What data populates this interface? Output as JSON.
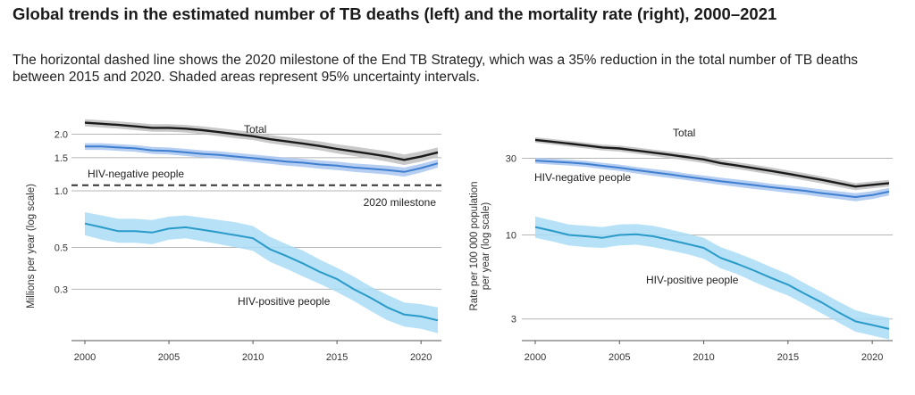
{
  "title": "Global trends in the estimated number of TB deaths (left) and the mortality rate (right), 2000–2021",
  "subtitle": "The horizontal dashed line shows the 2020 milestone of the End TB Strategy, which was a 35% reduction in the total number of TB deaths between 2015 and 2020. Shaded areas represent 95% uncertainty intervals.",
  "colors": {
    "total": "#1a1a1a",
    "total_band": "#bfbfbf",
    "hiv_negative": "#3f7fd0",
    "hiv_negative_band": "#a8c6ee",
    "hiv_positive": "#2a9ac9",
    "hiv_positive_band": "#a9dcf4",
    "grid": "#b5b5b5",
    "milestone": "#333333"
  },
  "chart_data": [
    {
      "type": "line",
      "scale": "log",
      "ylabel": "Millions per year (log scale)",
      "xlabel": "",
      "ylim": [
        0.16,
        2.5
      ],
      "x_ticks": [
        2000,
        2005,
        2010,
        2015,
        2020
      ],
      "y_ticks": [
        "2.0",
        "1.5",
        "1.0",
        "0.5",
        "0.3"
      ],
      "x": [
        2000,
        2001,
        2002,
        2003,
        2004,
        2005,
        2006,
        2007,
        2008,
        2009,
        2010,
        2011,
        2012,
        2013,
        2014,
        2015,
        2016,
        2017,
        2018,
        2019,
        2020,
        2021
      ],
      "series": [
        {
          "name": "Total",
          "key": "total",
          "values": [
            2.3,
            2.27,
            2.24,
            2.2,
            2.16,
            2.16,
            2.14,
            2.1,
            2.05,
            2.0,
            1.95,
            1.88,
            1.83,
            1.78,
            1.73,
            1.67,
            1.62,
            1.57,
            1.52,
            1.46,
            1.52,
            1.6
          ],
          "low": [
            2.2,
            2.17,
            2.14,
            2.1,
            2.06,
            2.06,
            2.04,
            2.0,
            1.95,
            1.9,
            1.86,
            1.79,
            1.74,
            1.69,
            1.64,
            1.58,
            1.53,
            1.48,
            1.43,
            1.37,
            1.43,
            1.51
          ],
          "high": [
            2.4,
            2.37,
            2.34,
            2.3,
            2.26,
            2.26,
            2.24,
            2.2,
            2.15,
            2.1,
            2.05,
            1.98,
            1.93,
            1.88,
            1.83,
            1.77,
            1.72,
            1.67,
            1.62,
            1.56,
            1.62,
            1.7
          ]
        },
        {
          "name": "HIV-negative people",
          "key": "hiv_negative",
          "values": [
            1.72,
            1.72,
            1.7,
            1.68,
            1.64,
            1.63,
            1.6,
            1.57,
            1.55,
            1.52,
            1.49,
            1.46,
            1.43,
            1.41,
            1.38,
            1.36,
            1.33,
            1.31,
            1.29,
            1.26,
            1.32,
            1.4
          ],
          "low": [
            1.65,
            1.65,
            1.63,
            1.61,
            1.57,
            1.56,
            1.53,
            1.5,
            1.48,
            1.45,
            1.42,
            1.39,
            1.36,
            1.34,
            1.31,
            1.29,
            1.26,
            1.24,
            1.22,
            1.19,
            1.25,
            1.33
          ],
          "high": [
            1.79,
            1.79,
            1.77,
            1.75,
            1.71,
            1.7,
            1.67,
            1.64,
            1.62,
            1.59,
            1.56,
            1.53,
            1.5,
            1.48,
            1.45,
            1.43,
            1.4,
            1.38,
            1.36,
            1.33,
            1.39,
            1.47
          ]
        },
        {
          "name": "HIV-positive people",
          "key": "hiv_positive",
          "values": [
            0.67,
            0.64,
            0.61,
            0.61,
            0.6,
            0.63,
            0.64,
            0.62,
            0.6,
            0.58,
            0.56,
            0.49,
            0.45,
            0.41,
            0.37,
            0.34,
            0.3,
            0.27,
            0.24,
            0.22,
            0.215,
            0.205
          ],
          "low": [
            0.58,
            0.55,
            0.53,
            0.53,
            0.52,
            0.55,
            0.56,
            0.54,
            0.52,
            0.5,
            0.48,
            0.42,
            0.385,
            0.35,
            0.32,
            0.29,
            0.26,
            0.23,
            0.205,
            0.19,
            0.185,
            0.175
          ],
          "high": [
            0.77,
            0.74,
            0.71,
            0.71,
            0.7,
            0.73,
            0.74,
            0.72,
            0.7,
            0.68,
            0.65,
            0.57,
            0.52,
            0.48,
            0.43,
            0.39,
            0.35,
            0.31,
            0.28,
            0.255,
            0.25,
            0.24
          ]
        }
      ],
      "reference_line": {
        "label": "2020 milestone",
        "value": 1.07
      },
      "annotations": [
        "Total",
        "HIV-negative people",
        "2020 milestone",
        "HIV-positive people"
      ]
    },
    {
      "type": "line",
      "scale": "log",
      "ylabel": "Rate per 100 000 population per year (log scale)",
      "xlabel": "",
      "ylim": [
        2.2,
        55
      ],
      "x_ticks": [
        2000,
        2005,
        2010,
        2015,
        2020
      ],
      "y_ticks": [
        "30",
        "10",
        "3"
      ],
      "x": [
        2000,
        2001,
        2002,
        2003,
        2004,
        2005,
        2006,
        2007,
        2008,
        2009,
        2010,
        2011,
        2012,
        2013,
        2014,
        2015,
        2016,
        2017,
        2018,
        2019,
        2020,
        2021
      ],
      "series": [
        {
          "name": "Total",
          "key": "total",
          "values": [
            39,
            38,
            37,
            36,
            35,
            34.5,
            33.5,
            32.5,
            31.5,
            30.5,
            29.5,
            28,
            27,
            26,
            25,
            24,
            23,
            22,
            21,
            20,
            20.5,
            21
          ],
          "low": [
            37.5,
            36.5,
            35.5,
            34.5,
            33.5,
            33,
            32,
            31,
            30,
            29,
            28,
            26.6,
            25.7,
            24.7,
            23.7,
            22.8,
            21.8,
            20.9,
            19.9,
            19,
            19.5,
            20
          ],
          "high": [
            40.5,
            39.5,
            38.5,
            37.5,
            36.5,
            36,
            35,
            34,
            33,
            32,
            31,
            29.4,
            28.3,
            27.3,
            26.3,
            25.2,
            24.2,
            23.1,
            22.1,
            21,
            21.5,
            22
          ]
        },
        {
          "name": "HIV-negative people",
          "key": "hiv_negative",
          "values": [
            29,
            28.6,
            28.2,
            27.7,
            26.9,
            26.2,
            25.3,
            24.5,
            23.8,
            23,
            22.3,
            21.6,
            21,
            20.4,
            19.8,
            19.3,
            18.8,
            18.2,
            17.7,
            17.2,
            17.7,
            18.6
          ],
          "low": [
            27.8,
            27.4,
            27,
            26.5,
            25.7,
            25,
            24.1,
            23.3,
            22.6,
            21.9,
            21.2,
            20.5,
            19.9,
            19.3,
            18.8,
            18.3,
            17.8,
            17.2,
            16.7,
            16.2,
            16.7,
            17.6
          ],
          "high": [
            30.2,
            29.8,
            29.4,
            28.9,
            28.1,
            27.4,
            26.5,
            25.7,
            25,
            24.1,
            23.4,
            22.7,
            22.1,
            21.5,
            20.8,
            20.3,
            19.8,
            19.2,
            18.7,
            18.2,
            18.7,
            19.6
          ]
        },
        {
          "name": "HIV-positive people",
          "key": "hiv_positive",
          "values": [
            11.2,
            10.6,
            10,
            9.8,
            9.6,
            10,
            10.1,
            9.8,
            9.3,
            8.8,
            8.3,
            7.2,
            6.6,
            6,
            5.4,
            4.9,
            4.3,
            3.8,
            3.3,
            2.9,
            2.75,
            2.6
          ],
          "low": [
            9.6,
            9.1,
            8.6,
            8.4,
            8.3,
            8.6,
            8.7,
            8.4,
            8,
            7.6,
            7.1,
            6.2,
            5.7,
            5.1,
            4.6,
            4.2,
            3.7,
            3.25,
            2.85,
            2.5,
            2.37,
            2.24
          ],
          "high": [
            13,
            12.3,
            11.6,
            11.4,
            11.2,
            11.6,
            11.7,
            11.4,
            10.8,
            10.2,
            9.6,
            8.4,
            7.7,
            7,
            6.3,
            5.7,
            5,
            4.4,
            3.85,
            3.4,
            3.2,
            3.05
          ]
        }
      ],
      "annotations": [
        "Total",
        "HIV-negative people",
        "HIV-positive people"
      ]
    }
  ]
}
